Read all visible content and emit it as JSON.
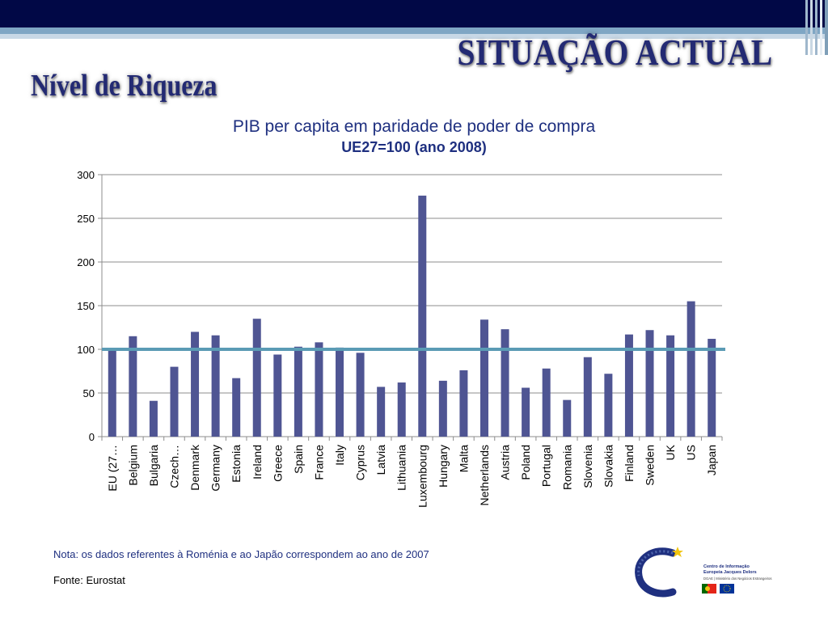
{
  "slide": {
    "title": "SITUAÇÃO ACTUAL",
    "subtitle": "Nível de Riqueza",
    "note": "Nota: os dados referentes à Roménia e ao Japão correspondem ao ano de 2007",
    "source": "Fonte: Eurostat"
  },
  "logo": {
    "line1": "Centro de Informação",
    "line2": "Europeia Jacques Delors",
    "line3": "DGAE | Ministério dos Negócios Estrangeiros"
  },
  "colors": {
    "bar": "#4f5593",
    "reference_line": "#5b9bb5",
    "header": "#010846",
    "title_text": "#232a73"
  },
  "chart_data": {
    "type": "bar",
    "title": "PIB per capita em paridade de poder de compra",
    "subtitle": "UE27=100  (ano 2008)",
    "categories": [
      "EU (27…",
      "Belgium",
      "Bulgaria",
      "Czech…",
      "Denmark",
      "Germany",
      "Estonia",
      "Ireland",
      "Greece",
      "Spain",
      "France",
      "Italy",
      "Cyprus",
      "Latvia",
      "Lithuania",
      "Luxembourg",
      "Hungary",
      "Malta",
      "Netherlands",
      "Austria",
      "Poland",
      "Portugal",
      "Romania",
      "Slovenia",
      "Slovakia",
      "Finland",
      "Sweden",
      "UK",
      "US",
      "Japan"
    ],
    "values": [
      100,
      115,
      41,
      80,
      120,
      116,
      67,
      135,
      94,
      103,
      108,
      102,
      96,
      57,
      62,
      276,
      64,
      76,
      134,
      123,
      56,
      78,
      42,
      91,
      72,
      117,
      122,
      116,
      155,
      112
    ],
    "ylim": [
      0,
      300
    ],
    "yticks": [
      0,
      50,
      100,
      150,
      200,
      250,
      300
    ],
    "reference_value": 100,
    "grid": true,
    "legend": "none"
  }
}
